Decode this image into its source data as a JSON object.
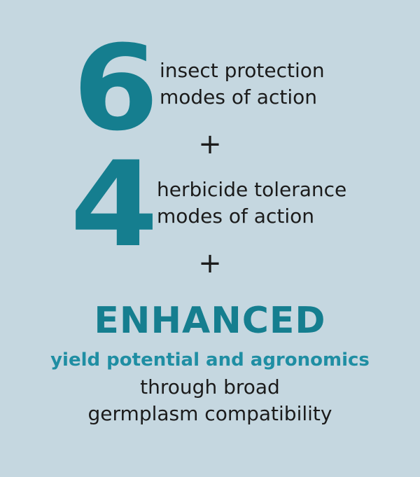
{
  "colors": {
    "background": "#c5d7e0",
    "accent": "#157e8f",
    "accent_light": "#1f8ea3",
    "text": "#1b1b1b"
  },
  "insect": {
    "number": "6",
    "line1": "insect protection",
    "line2": "modes of action"
  },
  "plus_1": "+",
  "herbicide": {
    "number": "4",
    "line1": "herbicide tolerance",
    "line2": "modes of action"
  },
  "plus_2": "+",
  "enhanced": {
    "heading": "ENHANCED",
    "subheading": "yield potential and agronomics",
    "line1": "through broad",
    "line2": "germplasm compatibility"
  }
}
